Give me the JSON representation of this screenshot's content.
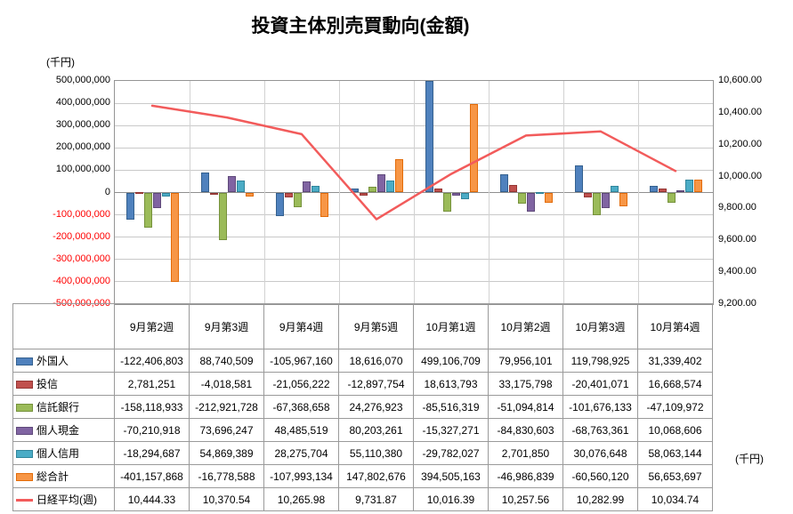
{
  "chart_data": {
    "type": "bar+line",
    "title": "投資主体別売買動向(金額)",
    "categories": [
      "9月第2週",
      "9月第3週",
      "9月第4週",
      "9月第5週",
      "10月第1週",
      "10月第2週",
      "10月第3週",
      "10月第4週"
    ],
    "left_axis": {
      "unit_label": "(千円)",
      "min": -500000000,
      "max": 500000000,
      "step": 100000000,
      "negative_label_color": "#FF0000"
    },
    "right_axis": {
      "unit_label": "(千円)",
      "min": 9200,
      "max": 10600,
      "step": 200
    },
    "grid": true,
    "legend_position": "table-left-column",
    "series": [
      {
        "key": "foreigners",
        "name": "外国人",
        "type": "bar",
        "color": "#4F81BD",
        "border": "#35618F",
        "decimals": 0,
        "values": [
          -122406803,
          88740509,
          -105967160,
          18616070,
          499106709,
          79956101,
          119798925,
          31339402
        ]
      },
      {
        "key": "investment-trusts",
        "name": "投信",
        "type": "bar",
        "color": "#C0504D",
        "border": "#953735",
        "decimals": 0,
        "values": [
          2781251,
          -4018581,
          -21056222,
          -12897754,
          18613793,
          33175798,
          -20401071,
          16668574
        ]
      },
      {
        "key": "trust-banks",
        "name": "信託銀行",
        "type": "bar",
        "color": "#9BBB59",
        "border": "#76923C",
        "decimals": 0,
        "values": [
          -158118933,
          -212921728,
          -67368658,
          24276923,
          -85516319,
          -51094814,
          -101676133,
          -47109972
        ]
      },
      {
        "key": "individual-cash",
        "name": "個人現金",
        "type": "bar",
        "color": "#8064A2",
        "border": "#5F497A",
        "decimals": 0,
        "values": [
          -70210918,
          73696247,
          48485519,
          80203261,
          -15327271,
          -84830603,
          -68763361,
          10068606
        ]
      },
      {
        "key": "individual-margin",
        "name": "個人信用",
        "type": "bar",
        "color": "#4BACC6",
        "border": "#31859B",
        "decimals": 0,
        "values": [
          -18294687,
          54869389,
          28275704,
          55110380,
          -29782027,
          2701850,
          30076648,
          58063144
        ]
      },
      {
        "key": "grand-total",
        "name": "総合計",
        "type": "bar",
        "color": "#F79646",
        "border": "#E36C09",
        "decimals": 0,
        "values": [
          -401157868,
          -16778588,
          -107993134,
          147802676,
          394505163,
          -46986839,
          -60560120,
          56653697
        ]
      },
      {
        "key": "nikkei-average-weekly",
        "name": "日経平均(週)",
        "type": "line",
        "color": "#F25B5B",
        "decimals": 2,
        "axis": "right",
        "values": [
          10444.33,
          10370.54,
          10265.98,
          9731.87,
          10016.39,
          10257.56,
          10282.99,
          10034.74
        ]
      }
    ]
  }
}
